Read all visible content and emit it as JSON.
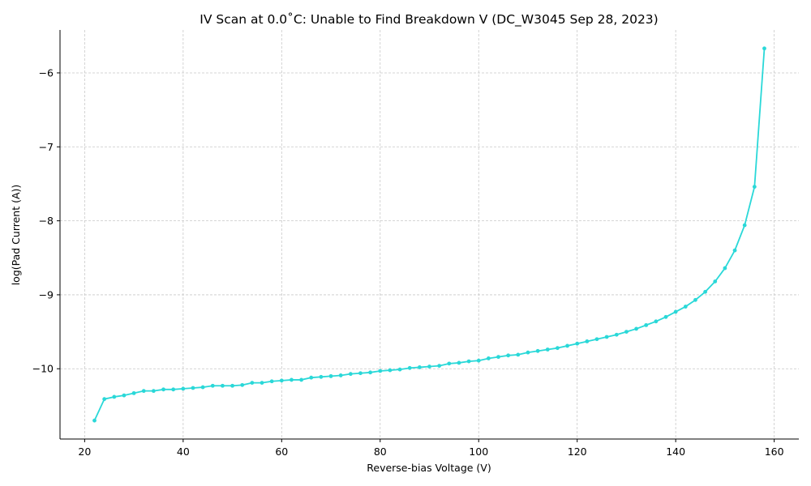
{
  "chart_data": {
    "type": "line",
    "title": "IV Scan at 0.0˚C: Unable to Find Breakdown V (DC_W3045 Sep 28, 2023)",
    "xlabel": "Reverse-bias Voltage (V)",
    "ylabel": "log(Pad Current (A))",
    "xlim": [
      15,
      165
    ],
    "ylim": [
      -10.95,
      -5.42
    ],
    "xticks": [
      20,
      40,
      60,
      80,
      100,
      120,
      140,
      160
    ],
    "xtick_labels": [
      "20",
      "40",
      "60",
      "80",
      "100",
      "120",
      "140",
      "160"
    ],
    "yticks": [
      -10,
      -9,
      -8,
      -7,
      -6
    ],
    "ytick_labels": [
      "−10",
      "−9",
      "−8",
      "−7",
      "−6"
    ],
    "grid": true,
    "color": "#2ad8d8",
    "series": [
      {
        "x": [
          22,
          24,
          26,
          28,
          30,
          32,
          34,
          36,
          38,
          40,
          42,
          44,
          46,
          48,
          50,
          52,
          54,
          56,
          58,
          60,
          62,
          64,
          66,
          68,
          70,
          72,
          74,
          76,
          78,
          80,
          82,
          84,
          86,
          88,
          90,
          92,
          94,
          96,
          98,
          100,
          102,
          104,
          106,
          108,
          110,
          112,
          114,
          116,
          118,
          120,
          122,
          124,
          126,
          128,
          130,
          132,
          134,
          136,
          138,
          140,
          142,
          144,
          146,
          148,
          150,
          152,
          154,
          156,
          158
        ],
        "y": [
          -10.7,
          -10.41,
          -10.38,
          -10.36,
          -10.33,
          -10.3,
          -10.3,
          -10.28,
          -10.28,
          -10.27,
          -10.26,
          -10.25,
          -10.23,
          -10.23,
          -10.23,
          -10.22,
          -10.19,
          -10.19,
          -10.17,
          -10.16,
          -10.15,
          -10.15,
          -10.12,
          -10.11,
          -10.1,
          -10.09,
          -10.07,
          -10.06,
          -10.05,
          -10.03,
          -10.02,
          -10.01,
          -9.99,
          -9.98,
          -9.97,
          -9.96,
          -9.93,
          -9.92,
          -9.9,
          -9.89,
          -9.86,
          -9.84,
          -9.82,
          -9.81,
          -9.78,
          -9.76,
          -9.74,
          -9.72,
          -9.69,
          -9.66,
          -9.63,
          -9.6,
          -9.57,
          -9.54,
          -9.5,
          -9.46,
          -9.41,
          -9.36,
          -9.3,
          -9.23,
          -9.16,
          -9.07,
          -8.96,
          -8.82,
          -8.64,
          -8.4,
          -8.06,
          -7.54,
          -5.67
        ]
      }
    ]
  }
}
